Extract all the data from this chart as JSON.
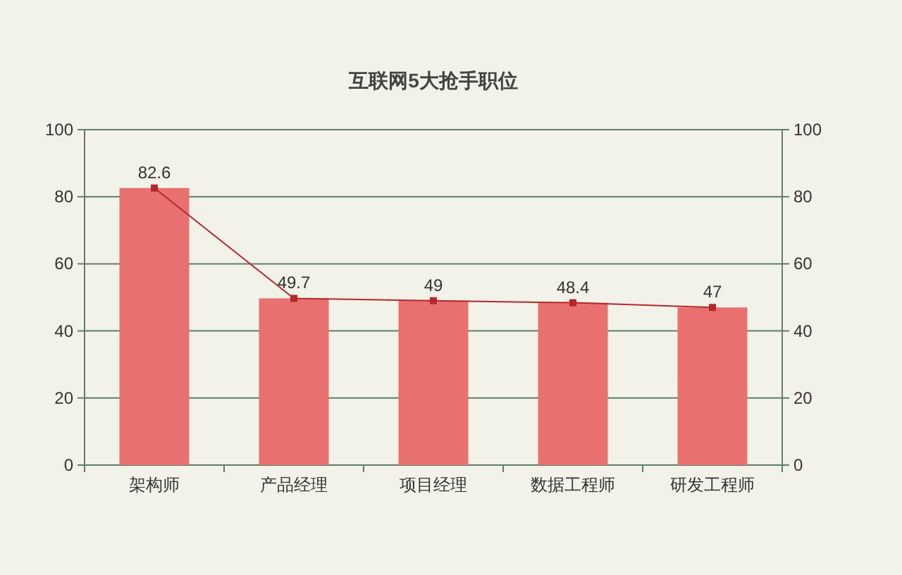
{
  "chart_data": {
    "type": "bar",
    "title": "互联网5大抢手职位",
    "categories": [
      "架构师",
      "产品经理",
      "项目经理",
      "数据工程师",
      "研发工程师"
    ],
    "series": [
      {
        "color": "#e8716f",
        "values": [
          82.6,
          49.7,
          49,
          48.4,
          47
        ]
      },
      {
        "type": "line",
        "axis": "y2",
        "color": "#b3282c",
        "marker": "square",
        "values": [
          82.6,
          49.7,
          49,
          48.4,
          47
        ],
        "value_labels": [
          "82.6",
          "49.7",
          "49",
          "48.4",
          "47"
        ]
      }
    ],
    "ylim": [
      0,
      100
    ],
    "yticks": [
      0,
      20,
      40,
      60,
      80,
      100
    ],
    "y2lim": [
      0,
      100
    ],
    "y2ticks": [
      0,
      20,
      40,
      60,
      80,
      100
    ],
    "grid": "y"
  }
}
